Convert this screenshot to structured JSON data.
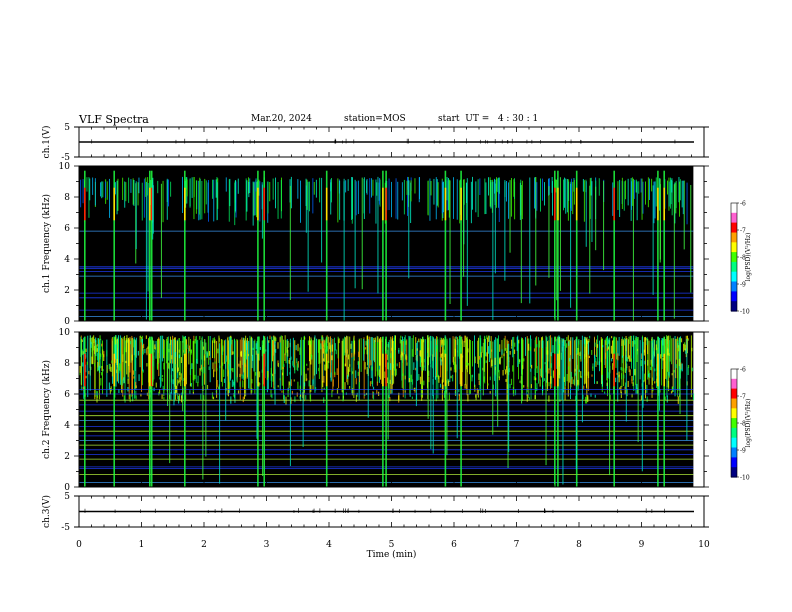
{
  "header": {
    "title": "VLF Spectra",
    "date": "Mar.20, 2024",
    "station": "station=MOS",
    "start": "start  UT =   4 : 30 : 1"
  },
  "colors": {
    "scale": [
      "#ffffff",
      "#ff3fbf",
      "#ff0000",
      "#ffff00",
      "#00e000",
      "#00ffff",
      "#0000ff",
      "#000000"
    ],
    "spectrogram_background": "#000000"
  },
  "chart_data": [
    {
      "type": "line",
      "panel": "ch1",
      "ylabel": "ch.1(V)",
      "ylim": [
        -5,
        5
      ],
      "yticks": [
        "5",
        "-5"
      ],
      "x": [
        0,
        10
      ],
      "values": [
        0,
        0
      ]
    },
    {
      "type": "heatmap",
      "panel": "ch1-spectrogram",
      "ylabel": "ch.1  Frequency (kHz)",
      "ylim": [
        0,
        10
      ],
      "yticks": [
        "0",
        "2",
        "4",
        "6",
        "8",
        "10"
      ],
      "xlim": [
        0,
        9.83
      ],
      "colorbar": {
        "label": "log(PSD)(V²/Hz)",
        "range": [
          -10,
          -6
        ],
        "ticks": [
          "-6",
          "-7",
          "-8",
          "-9",
          "-10"
        ]
      },
      "bright_band_khz": [
        6.3,
        9.3
      ],
      "strong_burst_times_min": [
        0.08,
        0.55,
        1.12,
        1.15,
        1.68,
        2.85,
        2.95,
        3.95,
        4.85,
        4.9,
        5.85,
        6.1,
        7.6,
        7.65,
        7.95,
        8.55,
        9.25,
        9.35
      ]
    },
    {
      "type": "heatmap",
      "panel": "ch2-spectrogram",
      "ylabel": "ch.2  Frequency (kHz)",
      "ylim": [
        0,
        10
      ],
      "yticks": [
        "0",
        "2",
        "4",
        "6",
        "8",
        "10"
      ],
      "xlim": [
        0,
        9.83
      ],
      "colorbar": {
        "label": "log(PSD)(V²/Hz)",
        "range": [
          -10,
          -6
        ],
        "ticks": [
          "-6",
          "-7",
          "-8",
          "-9",
          "-10"
        ]
      },
      "bright_band_khz": [
        6.3,
        9.8
      ],
      "strong_burst_times_min": [
        0.08,
        0.55,
        1.12,
        1.15,
        1.68,
        2.85,
        2.95,
        3.95,
        4.85,
        4.9,
        5.85,
        6.1,
        7.6,
        7.65,
        7.95,
        8.55,
        9.25,
        9.35
      ]
    },
    {
      "type": "line",
      "panel": "ch3",
      "ylabel": "ch.3(V)",
      "ylim": [
        -5,
        5
      ],
      "yticks": [
        "5",
        "-5"
      ],
      "xlabel": "Time  (min)",
      "xlim": [
        0,
        10
      ],
      "xticks": [
        "0",
        "1",
        "2",
        "3",
        "4",
        "5",
        "6",
        "7",
        "8",
        "9",
        "10"
      ],
      "x": [
        0,
        10
      ],
      "values": [
        0,
        0
      ]
    }
  ]
}
